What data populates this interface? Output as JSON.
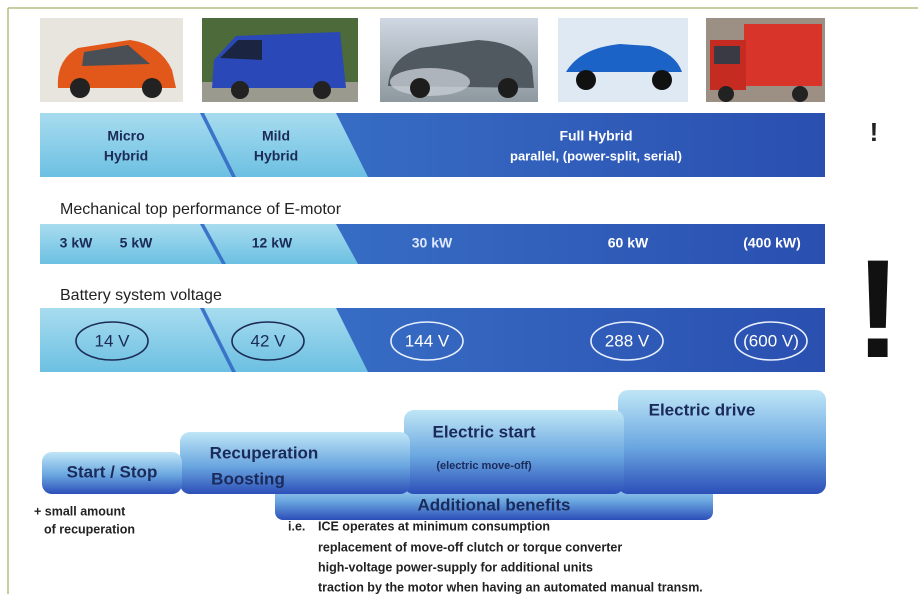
{
  "hybrid_types": [
    {
      "lines": [
        "Micro",
        "Hybrid"
      ]
    },
    {
      "lines": [
        "Mild",
        "Hybrid"
      ]
    },
    {
      "lines": [
        "Full Hybrid",
        "parallel, (power-split, serial)"
      ]
    }
  ],
  "motor": {
    "title": "Mechanical top performance of E-motor",
    "values": [
      "3 kW",
      "5 kW",
      "12 kW",
      "30 kW",
      "60 kW",
      "(400 kW)"
    ]
  },
  "battery": {
    "title": "Battery system voltage",
    "values": [
      "14 V",
      "42 V",
      "144 V",
      "288 V",
      "(600 V)"
    ]
  },
  "functions": {
    "start_stop": "Start / Stop",
    "recuperation": [
      "Recuperation",
      "Boosting"
    ],
    "electric_start": "Electric start",
    "electric_start_note": "(electric move-off)",
    "electric_drive": "Electric drive",
    "additional": "Additional benefits"
  },
  "notes": {
    "recuperation": [
      "+ small amount",
      "of recuperation"
    ],
    "ie": "i.e.",
    "benefits": [
      "ICE operates at minimum consumption",
      "replacement of move-off clutch or torque converter",
      "high-voltage power-supply for additional units",
      "traction by the motor when having an automated manual transm."
    ]
  },
  "marks": {
    "small": "!",
    "big": "!"
  }
}
